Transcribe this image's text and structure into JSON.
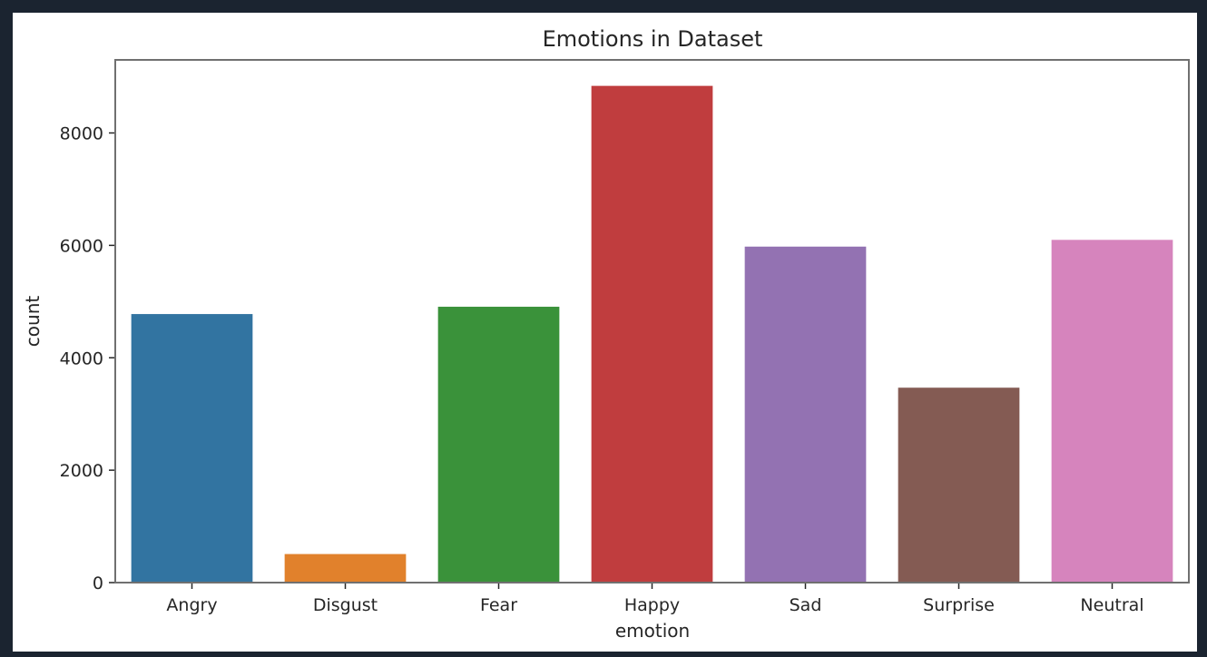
{
  "chart_data": {
    "type": "bar",
    "title": "Emotions in Dataset",
    "xlabel": "emotion",
    "ylabel": "count",
    "categories": [
      "Angry",
      "Disgust",
      "Fear",
      "Happy",
      "Sad",
      "Surprise",
      "Neutral"
    ],
    "values": [
      4790,
      520,
      4920,
      8850,
      5990,
      3480,
      6110
    ],
    "colors": [
      "#3274a1",
      "#e1812c",
      "#3a923a",
      "#c03d3e",
      "#9372b2",
      "#845b53",
      "#d684bd"
    ],
    "ylim": [
      0,
      9300
    ],
    "yticks": [
      0,
      2000,
      4000,
      6000,
      8000
    ],
    "grid": false
  }
}
